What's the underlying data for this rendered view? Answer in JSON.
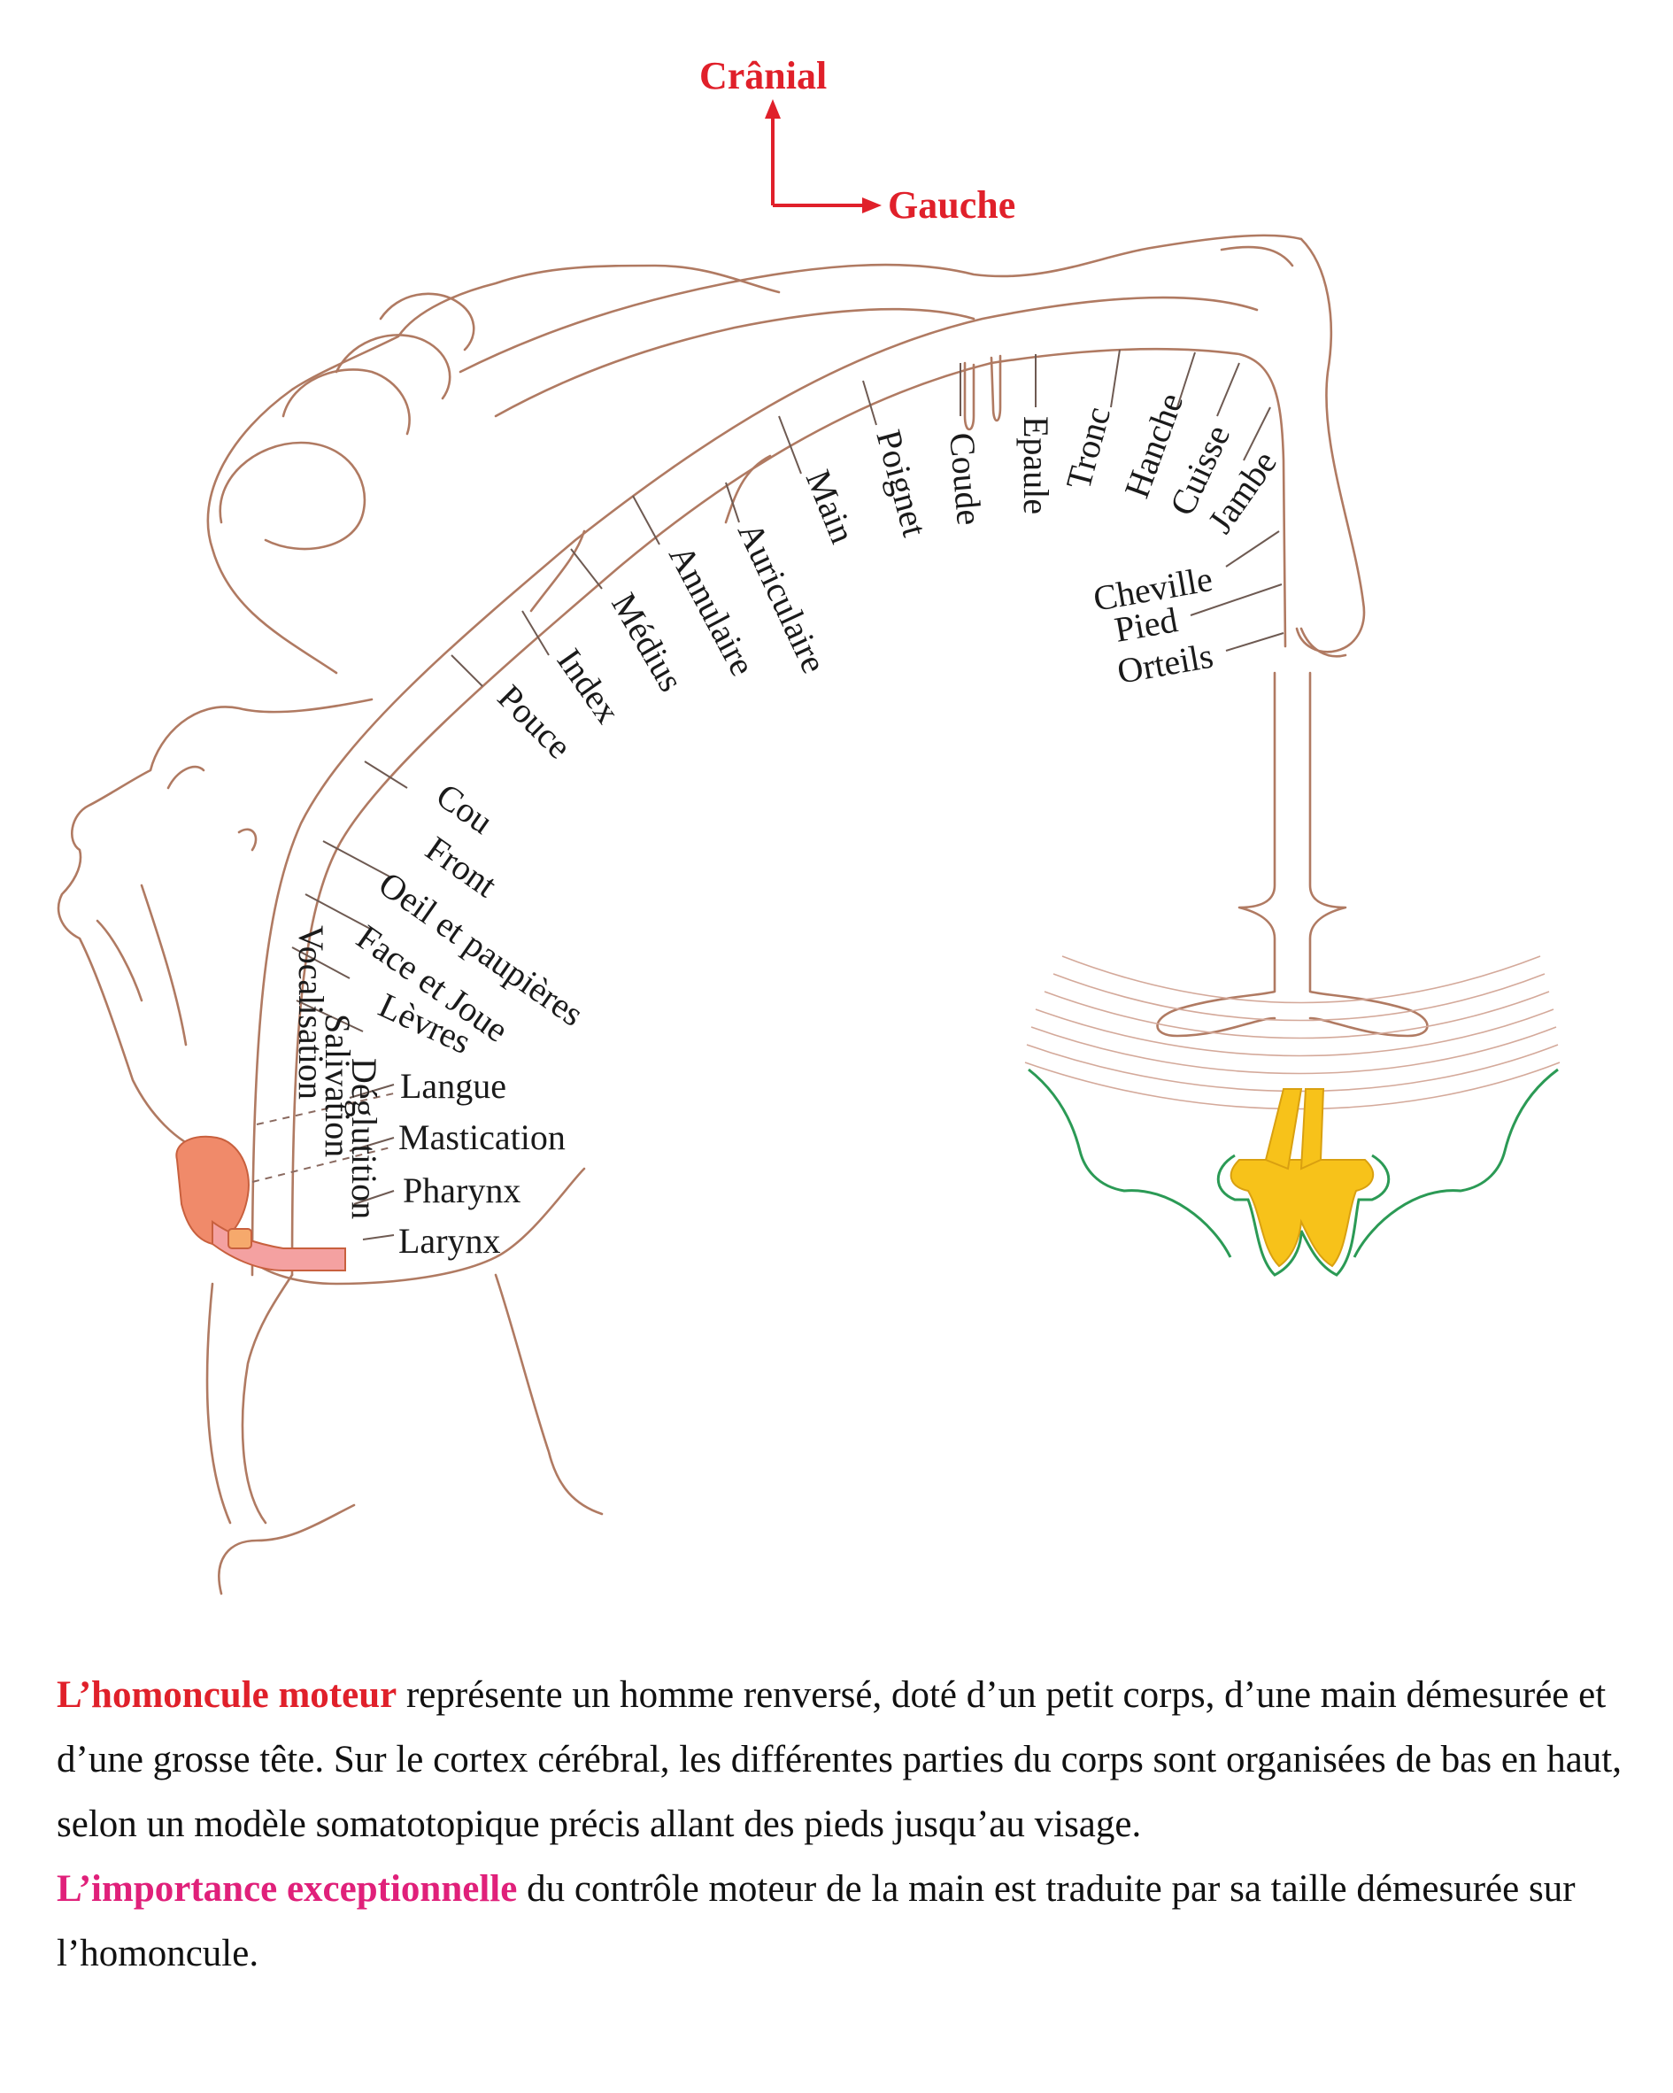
{
  "orientation": {
    "cranial": "Crânial",
    "left": "Gauche"
  },
  "labels": {
    "front": "Front",
    "cou": "Cou",
    "pouce": "Pouce",
    "index": "Index",
    "medius": "Médius",
    "annulaire": "Annulaire",
    "auriculaire": "Auriculaire",
    "main": "Main",
    "poignet": "Poignet",
    "coude": "Coude",
    "epaule": "Epaule",
    "tronc": "Tronc",
    "hanche": "Hanche",
    "cuisse": "Cuisse",
    "jambe": "Jambe",
    "cheville": "Cheville",
    "pied": "Pied",
    "orteils": "Orteils",
    "oeil": "Oeil et paupières",
    "face": "Face et Joue",
    "levres": "Lèvres",
    "langue": "Langue",
    "mastication": "Mastication",
    "pharynx": "Pharynx",
    "larynx": "Larynx",
    "vocalisation": "Vocalisation",
    "salivation": "Salivation",
    "deglutition": "Déglutition"
  },
  "caption": {
    "p1_highlight": "L’homoncule moteur",
    "p1_text": " représente un homme renversé, doté d’un petit corps, d’une main démesurée et d’une grosse tête. Sur le cortex cérébral, les différentes parties du corps sont organisées de bas en haut, selon un modèle somatotopique précis allant des pieds jusqu’au visage.",
    "p2_highlight": "L’importance exceptionnelle",
    "p2_text": " du contrôle moteur de la main est traduite par sa taille démesurée sur l’homoncule."
  },
  "colors": {
    "accent_red": "#e0202a",
    "accent_magenta": "#e0207a",
    "outline": "#b07a62",
    "tongue": "#f08a6a",
    "white_matter_outline": "#2b9a55",
    "nucleus": "#f7c21a"
  }
}
